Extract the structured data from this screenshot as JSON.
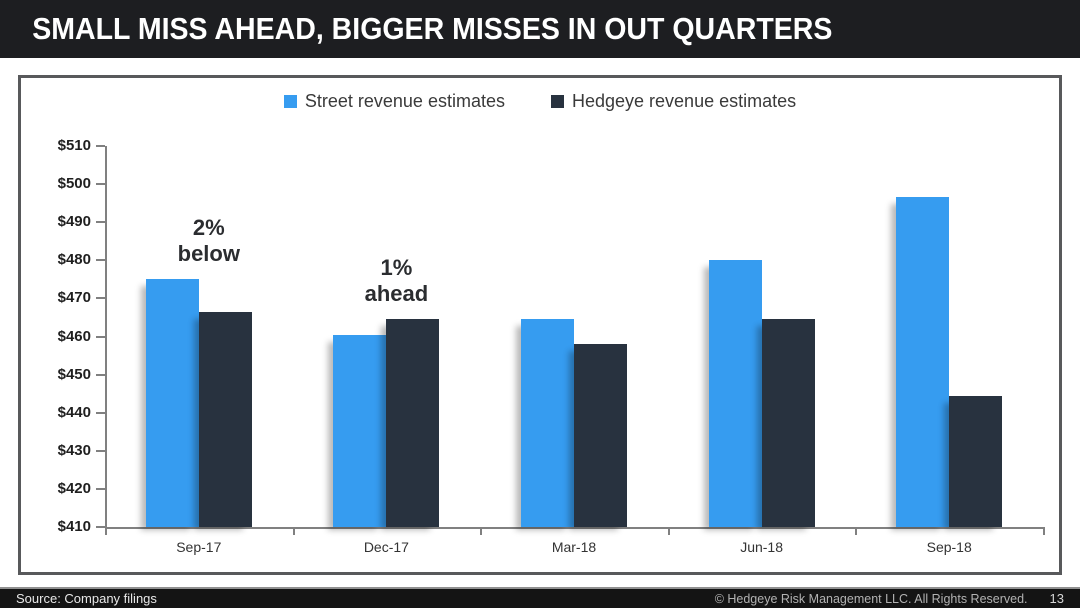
{
  "header": {
    "title": "SMALL MISS AHEAD, BIGGER MISSES IN OUT QUARTERS"
  },
  "chart_data": {
    "type": "bar",
    "title": "",
    "categories": [
      "Sep-17",
      "Dec-17",
      "Mar-18",
      "Jun-18",
      "Sep-18"
    ],
    "series": [
      {
        "name": "Street revenue estimates",
        "color": "#369cf0",
        "values": [
          475,
          460.5,
          464.5,
          480,
          496.5
        ]
      },
      {
        "name": "Hedgeye revenue estimates",
        "color": "#28323f",
        "values": [
          466.5,
          464.5,
          458,
          464.5,
          444.5
        ]
      }
    ],
    "xlabel": "",
    "ylabel": "",
    "ylim": [
      410,
      510
    ],
    "ytick_step": 10,
    "ytick_labels": [
      "$510",
      "$500",
      "$490",
      "$480",
      "$470",
      "$460",
      "$450",
      "$440",
      "$430",
      "$420",
      "$410"
    ],
    "ytick_values": [
      510,
      500,
      490,
      480,
      470,
      460,
      450,
      440,
      430,
      420,
      410
    ],
    "grid": false,
    "legend_position": "top",
    "annotations": [
      {
        "lines": "2%\nbelow",
        "category_index": 0
      },
      {
        "lines": "1%\nahead",
        "category_index": 1
      }
    ]
  },
  "footer": {
    "source": "Source: Company filings",
    "copyright": "© Hedgeye Risk Management LLC. All Rights Reserved.",
    "page_number": "13"
  },
  "colors": {
    "street_blue": "#369cf0",
    "hedgeye_navy": "#28323f",
    "header_bg": "#1d1e21",
    "frame_border": "#58595b",
    "axis_gray": "#808080"
  }
}
